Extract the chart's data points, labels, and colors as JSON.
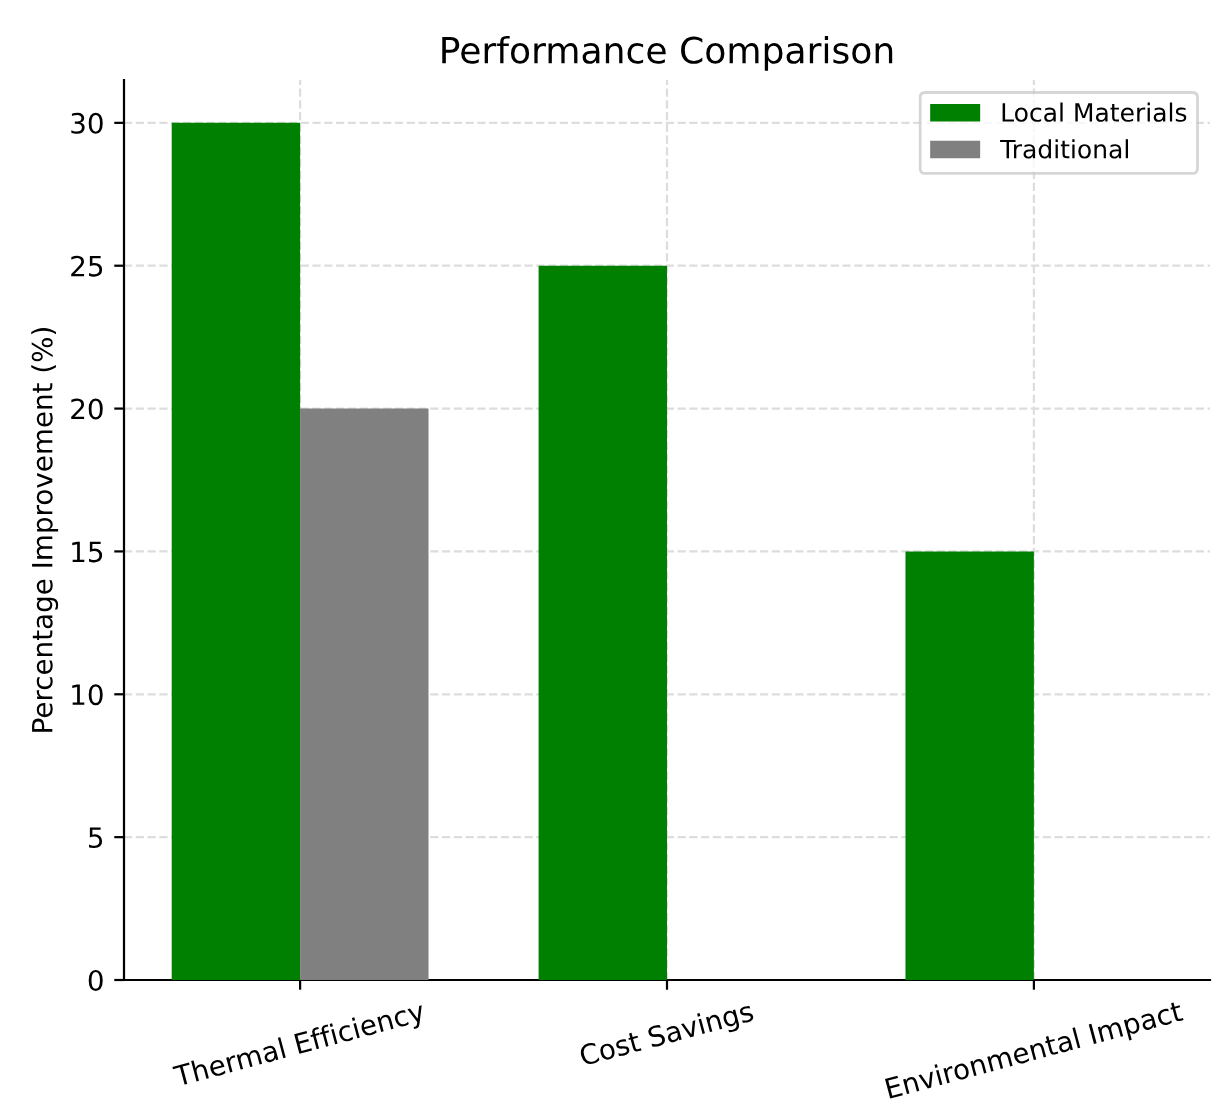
{
  "chart_data": {
    "type": "bar",
    "title": "Performance Comparison",
    "ylabel": "Percentage Improvement (%)",
    "categories": [
      "Thermal Efficiency",
      "Cost Savings",
      "Environmental Impact"
    ],
    "series": [
      {
        "name": "Local Materials",
        "color": "#008000",
        "values": [
          30,
          25,
          15
        ]
      },
      {
        "name": "Traditional",
        "color": "#808080",
        "values": [
          20,
          0,
          0
        ]
      }
    ],
    "ylim": [
      0,
      31.5
    ],
    "yticks": [
      0,
      5,
      10,
      15,
      20,
      25,
      30
    ],
    "grid": true,
    "legend": "top right"
  }
}
